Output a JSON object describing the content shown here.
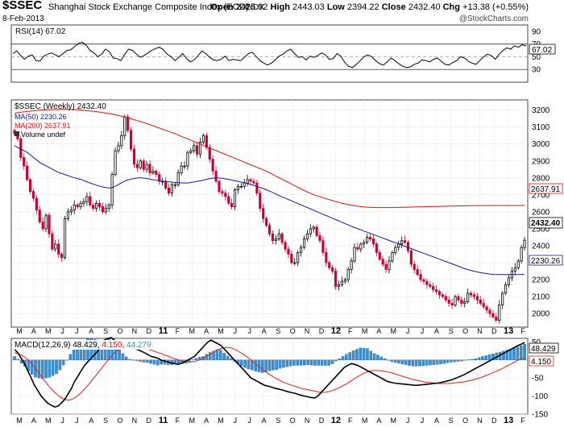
{
  "header": {
    "symbol": "$SSEC",
    "name": "Shanghai Stock Exchange Composite Index (EOD)",
    "exchange": "INDX",
    "open_label": "Open",
    "open": "2425.92",
    "high_label": "High",
    "high": "2443.03",
    "low_label": "Low",
    "low": "2394.22",
    "close_label": "Close",
    "close": "2432.40",
    "chg_label": "Chg",
    "chg": "+13.38 (+0.55%)",
    "date": "8-Feb-2013",
    "brand": "@StockCharts.com"
  },
  "colors": {
    "up": "#000000",
    "down": "#cc0033",
    "ma50": "#1a1a8c",
    "ma200": "#e01010",
    "macd_hist": "#3a8fd0",
    "macd_signal": "#e02020"
  },
  "chart_data": {
    "type": "candlestick",
    "timeframe": "Weekly",
    "x_tick_labels": [
      "M",
      "A",
      "M",
      "J",
      "J",
      "A",
      "S",
      "O",
      "N",
      "D",
      "11",
      "F",
      "M",
      "A",
      "M",
      "J",
      "J",
      "A",
      "S",
      "O",
      "N",
      "D",
      "12",
      "F",
      "M",
      "A",
      "M",
      "J",
      "J",
      "A",
      "S",
      "O",
      "N",
      "D",
      "13",
      "F"
    ],
    "rsi": {
      "legend": "RSI(14) 67.02",
      "last": "67.02",
      "ylim": [
        10,
        100
      ],
      "ticks": [
        "90",
        "70",
        "50",
        "30"
      ],
      "overbought": 70,
      "oversold": 30,
      "values": [
        55,
        59,
        52,
        46,
        51,
        53,
        44,
        43,
        51,
        54,
        56,
        53,
        50,
        55,
        60,
        61,
        66,
        71,
        73,
        68,
        60,
        56,
        50,
        54,
        62,
        58,
        48,
        47,
        44,
        54,
        62,
        60,
        54,
        49,
        52,
        56,
        60,
        63,
        65,
        61,
        54,
        50,
        44,
        49,
        55,
        47,
        42,
        45,
        52,
        59,
        55,
        49,
        45,
        44,
        46,
        51,
        44,
        46,
        45,
        44,
        49,
        55,
        57,
        51,
        44,
        40,
        37,
        40,
        45,
        51,
        54,
        59,
        62,
        55,
        49,
        50,
        45,
        51,
        49,
        52,
        56,
        53,
        46,
        47,
        55,
        51,
        41,
        35,
        33,
        38,
        44,
        50,
        53,
        50,
        44,
        39,
        37,
        42,
        48,
        44,
        39,
        35,
        33,
        34,
        38,
        40,
        45,
        44,
        42,
        46,
        48,
        43,
        38,
        37,
        41,
        44,
        50,
        48,
        43,
        40,
        38,
        44,
        50,
        54,
        52,
        46,
        54,
        60,
        64,
        62,
        67,
        65,
        69,
        67.02
      ]
    },
    "price": {
      "legend": "$SSEC (Weekly) 2432.40",
      "ma50_legend": "MA(50) 2230.26",
      "ma200_legend": "MA(200) 2637.91",
      "volume_legend": "Volume undef",
      "last_close": "2432.40",
      "ma50_last": "2230.26",
      "ma200_last": "2637.91",
      "ylim": [
        1920,
        3260
      ],
      "ticks": [
        "3200",
        "3100",
        "3000",
        "2900",
        "2800",
        "2700",
        "2600",
        "2500",
        "2400",
        "2300",
        "2200",
        "2100",
        "2000"
      ],
      "closes": [
        3060,
        3030,
        2920,
        2870,
        2790,
        2720,
        2680,
        2610,
        2540,
        2500,
        2580,
        2470,
        2380,
        2410,
        2350,
        2330,
        2560,
        2600,
        2610,
        2640,
        2630,
        2650,
        2660,
        2690,
        2640,
        2620,
        2650,
        2630,
        2600,
        2620,
        2640,
        2820,
        2960,
        2990,
        3050,
        3160,
        3080,
        2970,
        2880,
        2860,
        2900,
        2850,
        2880,
        2830,
        2840,
        2820,
        2780,
        2780,
        2740,
        2710,
        2760,
        2760,
        2830,
        2870,
        2870,
        2950,
        2960,
        2990,
        2940,
        3010,
        3050,
        2980,
        2910,
        2840,
        2780,
        2720,
        2710,
        2690,
        2650,
        2630,
        2730,
        2750,
        2750,
        2770,
        2790,
        2780,
        2770,
        2710,
        2620,
        2560,
        2520,
        2470,
        2430,
        2440,
        2470,
        2420,
        2380,
        2350,
        2300,
        2300,
        2360,
        2390,
        2440,
        2470,
        2500,
        2510,
        2460,
        2430,
        2360,
        2300,
        2270,
        2250,
        2160,
        2170,
        2190,
        2200,
        2260,
        2310,
        2390,
        2380,
        2410,
        2420,
        2450,
        2440,
        2410,
        2360,
        2320,
        2290,
        2260,
        2310,
        2360,
        2390,
        2410,
        2430,
        2420,
        2370,
        2290,
        2260,
        2230,
        2200,
        2190,
        2170,
        2160,
        2140,
        2130,
        2110,
        2100,
        2080,
        2060,
        2050,
        2100,
        2080,
        2060,
        2070,
        2120,
        2110,
        2100,
        2080,
        2060,
        2040,
        2020,
        2000,
        1980,
        1960,
        2050,
        2120,
        2170,
        2210,
        2250,
        2270,
        2310,
        2390,
        2432.4
      ],
      "ma50": [
        2990,
        2980,
        2970,
        2960,
        2950,
        2935,
        2920,
        2905,
        2890,
        2880,
        2870,
        2860,
        2850,
        2840,
        2830,
        2825,
        2818,
        2812,
        2805,
        2800,
        2795,
        2790,
        2782,
        2775,
        2768,
        2762,
        2755,
        2750,
        2745,
        2742,
        2740,
        2745,
        2755,
        2765,
        2775,
        2785,
        2790,
        2795,
        2798,
        2800,
        2800,
        2798,
        2795,
        2790,
        2788,
        2785,
        2782,
        2780,
        2778,
        2776,
        2774,
        2772,
        2771,
        2770,
        2770,
        2772,
        2775,
        2778,
        2782,
        2786,
        2790,
        2795,
        2798,
        2800,
        2800,
        2798,
        2795,
        2792,
        2788,
        2784,
        2780,
        2776,
        2772,
        2768,
        2762,
        2756,
        2750,
        2744,
        2738,
        2730,
        2722,
        2714,
        2705,
        2696,
        2688,
        2680,
        2672,
        2664,
        2656,
        2648,
        2640,
        2632,
        2624,
        2616,
        2608,
        2600,
        2592,
        2584,
        2576,
        2568,
        2560,
        2552,
        2544,
        2536,
        2528,
        2520,
        2512,
        2505,
        2498,
        2491,
        2484,
        2477,
        2470,
        2463,
        2456,
        2449,
        2442,
        2435,
        2428,
        2421,
        2414,
        2407,
        2400,
        2393,
        2386,
        2379,
        2372,
        2365,
        2358,
        2351,
        2344,
        2337,
        2330,
        2323,
        2316,
        2309,
        2302,
        2295,
        2288,
        2281,
        2274,
        2267,
        2260,
        2255,
        2250,
        2246,
        2242,
        2239,
        2236,
        2233,
        2231,
        2230,
        2230,
        2230,
        2230,
        2230,
        2230,
        2230,
        2230,
        2230,
        2230.26
      ],
      "ma200": [
        3180,
        3185,
        3188,
        3190,
        3192,
        3194,
        3196,
        3198,
        3200,
        3201,
        3202,
        3202,
        3203,
        3203,
        3204,
        3204,
        3204,
        3204,
        3203,
        3202,
        3200,
        3198,
        3196,
        3194,
        3192,
        3190,
        3187,
        3184,
        3181,
        3178,
        3175,
        3170,
        3165,
        3160,
        3155,
        3150,
        3144,
        3138,
        3132,
        3126,
        3120,
        3113,
        3106,
        3099,
        3092,
        3085,
        3078,
        3071,
        3064,
        3056,
        3048,
        3040,
        3032,
        3024,
        3016,
        3008,
        3000,
        2992,
        2984,
        2976,
        2968,
        2960,
        2952,
        2944,
        2936,
        2928,
        2920,
        2912,
        2904,
        2896,
        2888,
        2880,
        2872,
        2864,
        2856,
        2848,
        2840,
        2830,
        2820,
        2810,
        2800,
        2790,
        2780,
        2770,
        2760,
        2750,
        2740,
        2730,
        2720,
        2712,
        2704,
        2696,
        2690,
        2684,
        2678,
        2672,
        2666,
        2660,
        2655,
        2650,
        2646,
        2642,
        2638,
        2635,
        2632,
        2630,
        2628,
        2627,
        2626,
        2625,
        2625,
        2625,
        2625,
        2625,
        2625,
        2626,
        2626,
        2627,
        2627,
        2628,
        2628,
        2629,
        2629,
        2630,
        2630,
        2631,
        2631,
        2632,
        2632,
        2633,
        2633,
        2634,
        2634,
        2634,
        2635,
        2635,
        2635,
        2636,
        2636,
        2636,
        2636,
        2637,
        2637,
        2637,
        2637,
        2637,
        2637,
        2637,
        2637,
        2637,
        2637,
        2637,
        2637,
        2637,
        2637.91
      ]
    },
    "macd": {
      "legend_prefix": "MACD(12,26,9)",
      "value": "48.429",
      "signal": "4.150",
      "histogram": "44.279",
      "ylim": [
        -150,
        60
      ],
      "ticks": [
        "50",
        "0",
        "-50",
        "-100",
        "-150"
      ],
      "macd_line": [
        30,
        20,
        5,
        -10,
        -30,
        -50,
        -70,
        -85,
        -100,
        -110,
        -120,
        -125,
        -130,
        -128,
        -120,
        -110,
        -95,
        -80,
        -60,
        -45,
        -30,
        -15,
        -5,
        5,
        15,
        25,
        40,
        55,
        60,
        62,
        55,
        50,
        45,
        40,
        38,
        35,
        32,
        28,
        25,
        20,
        15,
        10,
        8,
        5,
        0,
        -3,
        -5,
        -8,
        -10,
        -12,
        -10,
        -5,
        0,
        5,
        10,
        20,
        30,
        40,
        50,
        55,
        50,
        45,
        40,
        30,
        20,
        10,
        0,
        -10,
        -20,
        -30,
        -40,
        -50,
        -55,
        -60,
        -65,
        -70,
        -72,
        -75,
        -78,
        -80,
        -82,
        -85,
        -88,
        -90,
        -92,
        -95,
        -98,
        -100,
        -102,
        -104,
        -105,
        -100,
        -90,
        -80,
        -70,
        -60,
        -50,
        -40,
        -30,
        -20,
        -15,
        -10,
        -12,
        -15,
        -20,
        -25,
        -30,
        -35,
        -40,
        -45,
        -50,
        -55,
        -60,
        -62,
        -64,
        -65,
        -66,
        -67,
        -68,
        -69,
        -70,
        -70,
        -69,
        -68,
        -67,
        -66,
        -65,
        -64,
        -62,
        -60,
        -58,
        -55,
        -52,
        -48,
        -44,
        -40,
        -35,
        -30,
        -25,
        -20,
        -15,
        -10,
        -5,
        0,
        5,
        10,
        15,
        20,
        25,
        30,
        35,
        40,
        44,
        48.429
      ],
      "signal_line": [
        20,
        18,
        14,
        8,
        0,
        -10,
        -22,
        -35,
        -48,
        -60,
        -72,
        -82,
        -92,
        -100,
        -106,
        -110,
        -111,
        -108,
        -102,
        -95,
        -85,
        -75,
        -64,
        -52,
        -40,
        -28,
        -16,
        -4,
        8,
        18,
        26,
        32,
        36,
        38,
        38,
        37,
        36,
        34,
        32,
        30,
        27,
        24,
        20,
        17,
        13,
        10,
        6,
        3,
        0,
        -3,
        -5,
        -6,
        -5,
        -3,
        0,
        4,
        9,
        15,
        21,
        27,
        31,
        34,
        35,
        34,
        31,
        27,
        21,
        15,
        8,
        1,
        -7,
        -15,
        -22,
        -30,
        -37,
        -43,
        -49,
        -54,
        -59,
        -63,
        -67,
        -70,
        -73,
        -76,
        -79,
        -81,
        -83,
        -85,
        -87,
        -89,
        -90,
        -89,
        -87,
        -84,
        -80,
        -76,
        -71,
        -66,
        -60,
        -54,
        -48,
        -42,
        -37,
        -33,
        -30,
        -29,
        -29,
        -30,
        -31,
        -33,
        -35,
        -38,
        -41,
        -44,
        -47,
        -50,
        -53,
        -55,
        -57,
        -59,
        -61,
        -62,
        -63,
        -64,
        -65,
        -65,
        -65,
        -65,
        -64,
        -63,
        -62,
        -61,
        -59,
        -57,
        -55,
        -52,
        -49,
        -46,
        -42,
        -38,
        -34,
        -30,
        -26,
        -21,
        -16,
        -11,
        -6,
        -1,
        3,
        4.15
      ],
      "histogram_values": [
        10,
        2,
        -9,
        -18,
        -30,
        -40,
        -48,
        -50,
        -52,
        -50,
        -48,
        -43,
        -38,
        -28,
        -14,
        0,
        16,
        28,
        42,
        50,
        55,
        60,
        59,
        57,
        55,
        53,
        56,
        59,
        52,
        44,
        29,
        18,
        9,
        2,
        0,
        -2,
        -4,
        -6,
        -7,
        -10,
        -12,
        -14,
        -12,
        -12,
        -13,
        -13,
        -11,
        -11,
        -10,
        -9,
        -5,
        1,
        5,
        8,
        10,
        16,
        21,
        25,
        29,
        28,
        19,
        11,
        5,
        -4,
        -11,
        -17,
        -21,
        -25,
        -28,
        -31,
        -33,
        -35,
        -33,
        -30,
        -28,
        -27,
        -23,
        -21,
        -19,
        -17,
        -15,
        -15,
        -15,
        -14,
        -13,
        -14,
        -15,
        -15,
        -15,
        -15,
        -15,
        -11,
        -3,
        4,
        10,
        16,
        21,
        26,
        30,
        34,
        33,
        32,
        25,
        18,
        14,
        9,
        4,
        -1,
        -5,
        -7,
        -9,
        -11,
        -13,
        -15,
        -17,
        -17,
        -17,
        -16,
        -15,
        -14,
        -13,
        -12,
        -11,
        -10,
        -8,
        -6,
        -5,
        -4,
        -3,
        -1,
        1,
        2,
        4,
        7,
        10,
        12,
        15,
        17,
        20,
        22,
        25,
        28,
        30,
        33,
        36,
        40,
        44.279
      ]
    }
  }
}
